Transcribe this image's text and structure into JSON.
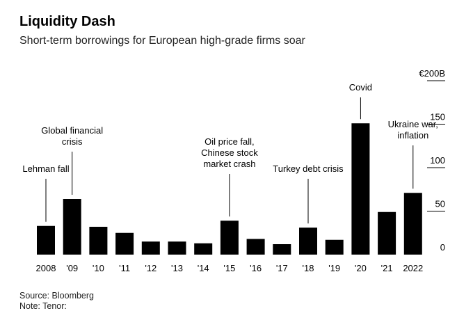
{
  "header": {
    "title": "Liquidity Dash",
    "subtitle": "Short-term borrowings for European high-grade firms soar"
  },
  "footer": {
    "source": "Source: Bloomberg",
    "note": "Note: Tenor:"
  },
  "colors": {
    "bar": "#000000",
    "text": "#000000"
  },
  "chart_data": {
    "type": "bar",
    "title": "Liquidity Dash",
    "subtitle": "Short-term borrowings for European high-grade firms soar",
    "xlabel": "",
    "ylabel": "",
    "ylim": [
      0,
      200
    ],
    "yticks": [
      0,
      50,
      100,
      150,
      200
    ],
    "ytick_labels": [
      "0",
      "50",
      "100",
      "150",
      "€200B"
    ],
    "y_axis_side": "right",
    "grid": false,
    "categories": [
      "2008",
      "'09",
      "'10",
      "'11",
      "'12",
      "'13",
      "'14",
      "'15",
      "'16",
      "'17",
      "'18",
      "'19",
      "'20",
      "'21",
      "2022"
    ],
    "values": [
      33,
      64,
      32,
      25,
      15,
      15,
      13,
      39,
      18,
      12,
      31,
      17,
      151,
      49,
      71
    ],
    "annotations": [
      {
        "category": "2008",
        "lines": [
          "Lehman fall"
        ]
      },
      {
        "category": "'09",
        "lines": [
          "Global financial",
          "crisis"
        ]
      },
      {
        "category": "'15",
        "lines": [
          "Oil price fall,",
          "Chinese stock",
          "market crash"
        ]
      },
      {
        "category": "'18",
        "lines": [
          "Turkey debt crisis"
        ]
      },
      {
        "category": "'20",
        "lines": [
          "Covid"
        ]
      },
      {
        "category": "2022",
        "lines": [
          "Ukraine war,",
          "inflation"
        ]
      }
    ]
  }
}
